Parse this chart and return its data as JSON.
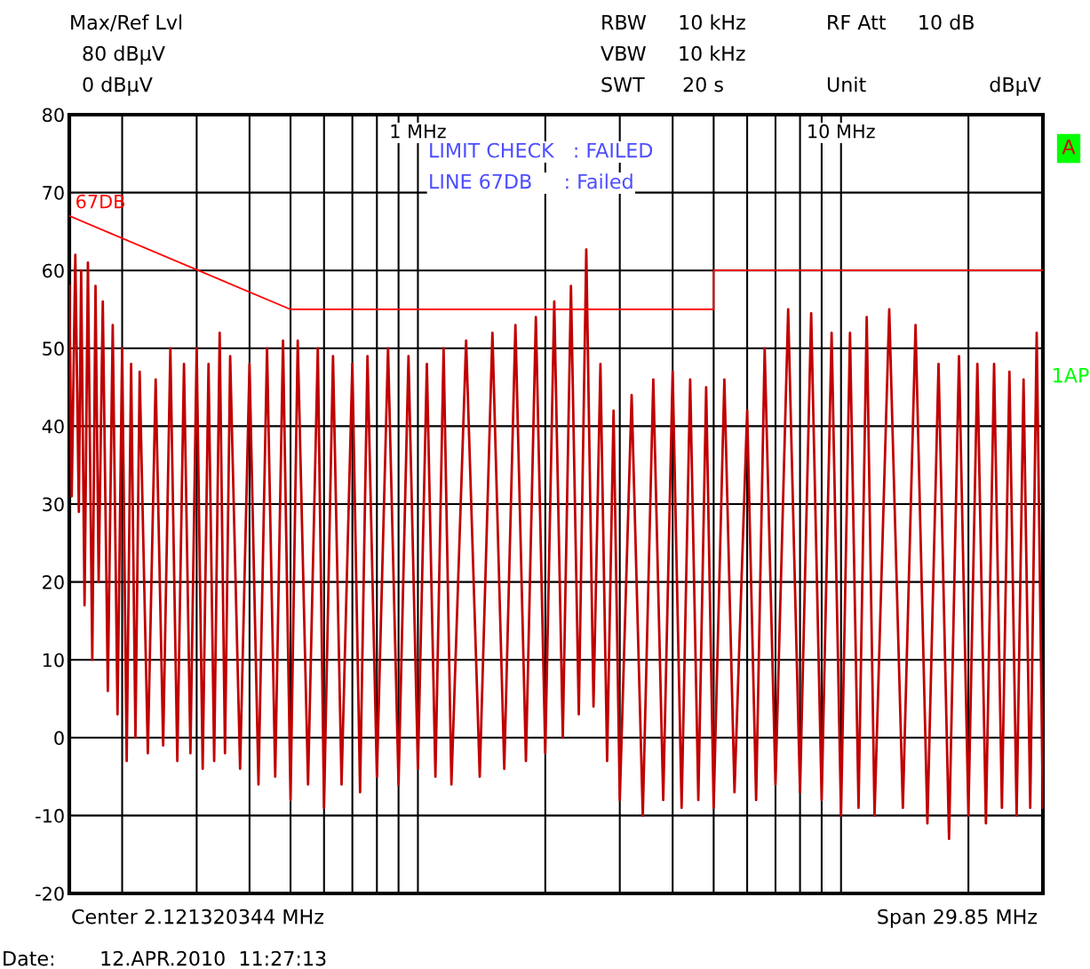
{
  "chart_data": {
    "type": "line",
    "log": "x",
    "xlim": [
      0.15,
      30
    ],
    "ylim": [
      -20,
      80
    ],
    "xticks": [
      {
        "value": 0.2,
        "label": null
      },
      {
        "value": 0.3,
        "label": null
      },
      {
        "value": 0.4,
        "label": null
      },
      {
        "value": 0.5,
        "label": null
      },
      {
        "value": 0.6,
        "label": null
      },
      {
        "value": 0.7,
        "label": null
      },
      {
        "value": 0.8,
        "label": null
      },
      {
        "value": 0.9,
        "label": null
      },
      {
        "value": 1,
        "label": "1 MHz"
      },
      {
        "value": 2,
        "label": null
      },
      {
        "value": 3,
        "label": null
      },
      {
        "value": 4,
        "label": null
      },
      {
        "value": 5,
        "label": null
      },
      {
        "value": 6,
        "label": null
      },
      {
        "value": 7,
        "label": null
      },
      {
        "value": 8,
        "label": null
      },
      {
        "value": 9,
        "label": null
      },
      {
        "value": 10,
        "label": "10 MHz"
      },
      {
        "value": 20,
        "label": null
      }
    ],
    "yticks": [
      -20,
      -10,
      0,
      10,
      20,
      30,
      40,
      50,
      60,
      70,
      80
    ],
    "grid": true,
    "legend": false,
    "marker": "none",
    "line_style": "solid",
    "series": [
      {
        "color": "#c00000",
        "x": [
          0.15,
          0.152,
          0.155,
          0.158,
          0.16,
          0.163,
          0.166,
          0.17,
          0.173,
          0.176,
          0.18,
          0.185,
          0.19,
          0.195,
          0.2,
          0.205,
          0.21,
          0.215,
          0.22,
          0.23,
          0.24,
          0.25,
          0.26,
          0.27,
          0.28,
          0.29,
          0.3,
          0.31,
          0.32,
          0.33,
          0.34,
          0.35,
          0.36,
          0.38,
          0.4,
          0.42,
          0.44,
          0.46,
          0.48,
          0.5,
          0.52,
          0.55,
          0.58,
          0.6,
          0.63,
          0.66,
          0.7,
          0.73,
          0.76,
          0.8,
          0.85,
          0.9,
          0.95,
          1.0,
          1.05,
          1.1,
          1.15,
          1.2,
          1.3,
          1.4,
          1.5,
          1.6,
          1.7,
          1.8,
          1.9,
          2.0,
          2.1,
          2.2,
          2.3,
          2.4,
          2.5,
          2.6,
          2.7,
          2.8,
          2.9,
          3.0,
          3.2,
          3.4,
          3.6,
          3.8,
          4.0,
          4.2,
          4.4,
          4.6,
          4.8,
          5.0,
          5.3,
          5.6,
          6.0,
          6.3,
          6.6,
          7.0,
          7.5,
          8.0,
          8.5,
          9.0,
          9.5,
          10,
          10.5,
          11,
          11.5,
          12,
          13,
          14,
          15,
          16,
          17,
          18,
          19,
          20,
          21,
          22,
          23,
          24,
          25,
          26,
          27,
          28,
          29,
          30
        ],
        "values": [
          58,
          31,
          62,
          29,
          60,
          17,
          61,
          10,
          58,
          20,
          56,
          6,
          53,
          3,
          50,
          -3,
          48,
          0,
          47,
          -2,
          46,
          -1,
          50,
          -3,
          48,
          -2,
          50,
          -4,
          48,
          -3,
          52,
          -2,
          49,
          -4,
          48,
          -6,
          50,
          -5,
          51,
          -8,
          51,
          -6,
          50,
          -9,
          49,
          -6,
          48,
          -7,
          49,
          -5,
          50,
          -6,
          49,
          -4,
          48,
          -5,
          50,
          -6,
          51,
          -5,
          52,
          -4,
          53,
          -3,
          54,
          -2,
          56,
          0,
          58,
          3,
          62.7,
          4,
          48,
          -3,
          42,
          -8,
          44,
          -10,
          46,
          -8,
          47,
          -9,
          46,
          -8,
          45,
          -9,
          46,
          -7,
          42,
          -8,
          50,
          -6,
          55,
          -7,
          54.5,
          -8,
          52,
          -10,
          52,
          -9,
          54,
          -10,
          55,
          -9,
          53,
          -11,
          48,
          -13,
          49,
          -10,
          48,
          -11,
          48,
          -9,
          47,
          -10,
          46,
          -9,
          52,
          -9
        ]
      },
      {
        "name": "67DB",
        "color": "#ff0000",
        "x": [
          0.15,
          0.5,
          5,
          5,
          30
        ],
        "values": [
          67,
          55,
          55,
          60,
          60
        ]
      }
    ],
    "annotations": [
      "Max/Ref Lvl",
      "80 dBμV",
      "0 dBμV",
      "RBW     10 kHz",
      "VBW     10 kHz",
      "SWT      20 s",
      "RF Att     10 dB",
      "Unit",
      "dBμV",
      "Center 2.121320344 MHz",
      "Span 29.85 MHz",
      "Date:       12.APR.2010  11:27:13",
      "LIMIT CHECK   : FAILED",
      "LINE 67DB     : Failed",
      "A",
      "1AP"
    ]
  }
}
